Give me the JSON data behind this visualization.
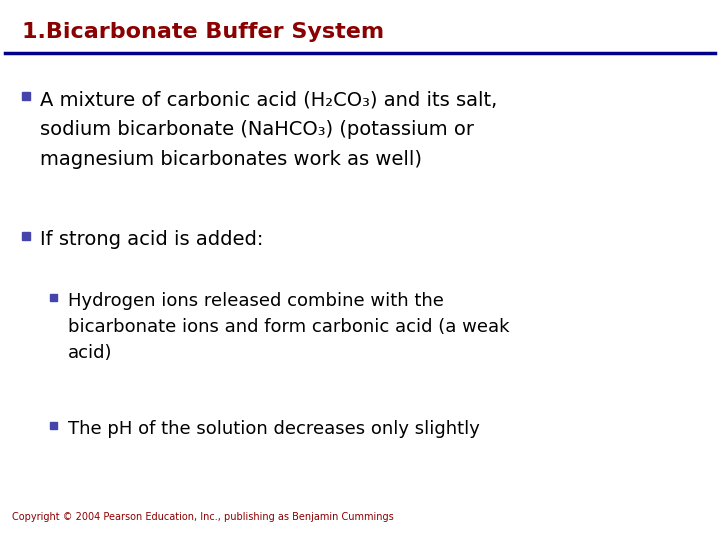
{
  "title": "1.Bicarbonate Buffer System",
  "title_color": "#8B0000",
  "title_fontsize": 16,
  "line_color": "#00008B",
  "background_color": "#FFFFFF",
  "bullet_color": "#4444AA",
  "text_color": "#000000",
  "copyright": "Copyright © 2004 Pearson Education, Inc., publishing as Benjamin Cummings",
  "copyright_color": "#8B0000",
  "copyright_fontsize": 7,
  "line1_text": "A mixture of carbonic acid (H₂CO₃) and its salt,",
  "line2_text": "sodium bicarbonate (NaHCO₃) (potassium or",
  "line3_text": "magnesium bicarbonates work as well)",
  "bullet2": "If strong acid is added:",
  "sub_bullet1_line1": "Hydrogen ions released combine with the",
  "sub_bullet1_line2": "bicarbonate ions and form carbonic acid (a weak",
  "sub_bullet1_line3": "acid)",
  "sub_bullet2": "The pH of the solution decreases only slightly",
  "main_bullet_fontsize": 14,
  "sub_bullet_fontsize": 13
}
